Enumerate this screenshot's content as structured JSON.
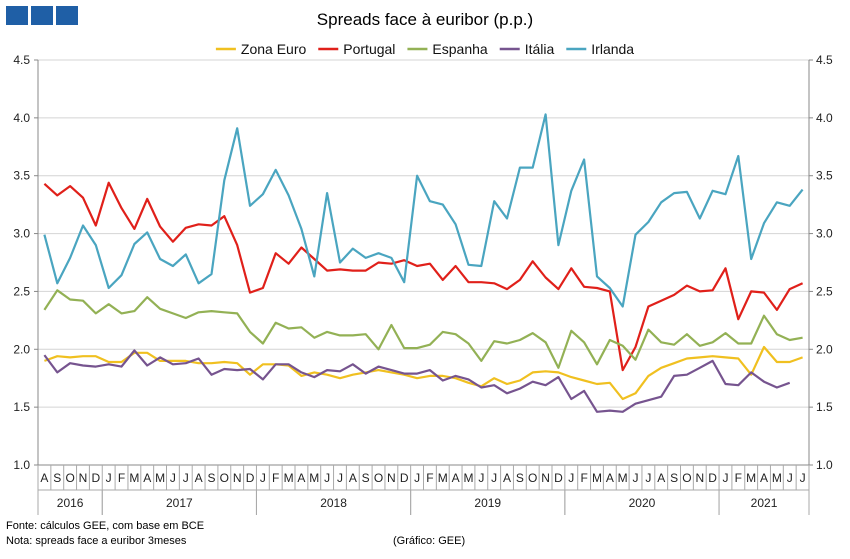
{
  "header": {
    "logo_color": "#1f5fa6",
    "title": "Spreads face à euribor (p.p.)"
  },
  "footer": {
    "source": "Fonte: cálculos GEE, com base em BCE",
    "note": "Nota: spreads face a euribor 3meses",
    "credit": "(Gráfico: GEE)"
  },
  "chart_data": {
    "type": "line",
    "title": "Spreads face à euribor (p.p.)",
    "xlabel": "",
    "ylabel": "",
    "ylim": [
      1.0,
      4.5
    ],
    "yticks": [
      "1.0",
      "1.5",
      "2.0",
      "2.5",
      "3.0",
      "3.5",
      "4.0",
      "4.5"
    ],
    "grid": "horizontal",
    "legend_position": "top",
    "axes": "left and right (mirrored)",
    "x_month_labels": [
      "A",
      "S",
      "O",
      "N",
      "D",
      "J",
      "F",
      "M",
      "A",
      "M",
      "J",
      "J",
      "A",
      "S",
      "O",
      "N",
      "D",
      "J",
      "F",
      "M",
      "A",
      "M",
      "J",
      "J",
      "A",
      "S",
      "O",
      "N",
      "D",
      "J",
      "F",
      "M",
      "A",
      "M",
      "J",
      "J",
      "A",
      "S",
      "O",
      "N",
      "D",
      "J",
      "F",
      "M",
      "A",
      "M",
      "J",
      "J",
      "A",
      "S",
      "O",
      "N",
      "D",
      "J",
      "F",
      "M",
      "A",
      "M",
      "J",
      "J"
    ],
    "x_year_groups": [
      {
        "label": "2016",
        "start": 0,
        "end": 4
      },
      {
        "label": "2017",
        "start": 5,
        "end": 16
      },
      {
        "label": "2018",
        "start": 17,
        "end": 28
      },
      {
        "label": "2019",
        "start": 29,
        "end": 40
      },
      {
        "label": "2020",
        "start": 41,
        "end": 52
      },
      {
        "label": "2021",
        "start": 53,
        "end": 59
      }
    ],
    "series": [
      {
        "name": "Zona Euro",
        "color": "#f0c020",
        "values": [
          1.9,
          1.94,
          1.93,
          1.94,
          1.94,
          1.89,
          1.89,
          1.97,
          1.97,
          1.9,
          1.9,
          1.9,
          1.88,
          1.88,
          1.89,
          1.88,
          1.78,
          1.87,
          1.87,
          1.86,
          1.77,
          1.8,
          1.78,
          1.75,
          1.78,
          1.8,
          1.82,
          1.8,
          1.78,
          1.75,
          1.77,
          1.77,
          1.75,
          1.71,
          1.68,
          1.75,
          1.7,
          1.73,
          1.8,
          1.81,
          1.8,
          1.76,
          1.73,
          1.7,
          1.71,
          1.57,
          1.62,
          1.77,
          1.84,
          1.88,
          1.92,
          1.93,
          1.94,
          1.93,
          1.92,
          1.78,
          2.02,
          1.89,
          1.89,
          1.93
        ]
      },
      {
        "name": "Portugal",
        "color": "#e0201a",
        "values": [
          3.43,
          3.33,
          3.41,
          3.31,
          3.07,
          3.44,
          3.22,
          3.04,
          3.3,
          3.06,
          2.93,
          3.05,
          3.08,
          3.07,
          3.15,
          2.9,
          2.49,
          2.53,
          2.83,
          2.74,
          2.88,
          2.78,
          2.68,
          2.69,
          2.68,
          2.68,
          2.75,
          2.74,
          2.77,
          2.72,
          2.74,
          2.6,
          2.72,
          2.58,
          2.58,
          2.57,
          2.52,
          2.6,
          2.76,
          2.62,
          2.52,
          2.7,
          2.54,
          2.53,
          2.5,
          1.82,
          2.02,
          2.37,
          2.42,
          2.47,
          2.55,
          2.5,
          2.51,
          2.7,
          2.26,
          2.5,
          2.49,
          2.34,
          2.52,
          2.57
        ]
      },
      {
        "name": "Espanha",
        "color": "#93b155",
        "values": [
          2.34,
          2.51,
          2.43,
          2.42,
          2.31,
          2.39,
          2.31,
          2.33,
          2.45,
          2.35,
          2.31,
          2.27,
          2.32,
          2.33,
          2.32,
          2.31,
          2.15,
          2.05,
          2.23,
          2.18,
          2.19,
          2.1,
          2.15,
          2.12,
          2.12,
          2.13,
          2.0,
          2.21,
          2.01,
          2.01,
          2.04,
          2.15,
          2.13,
          2.05,
          1.9,
          2.07,
          2.05,
          2.08,
          2.14,
          2.06,
          1.84,
          2.16,
          2.06,
          1.87,
          2.08,
          2.03,
          1.91,
          2.17,
          2.06,
          2.04,
          2.13,
          2.03,
          2.06,
          2.14,
          2.05,
          2.05,
          2.29,
          2.13,
          2.08,
          2.1
        ]
      },
      {
        "name": "Itália",
        "color": "#76548f",
        "values": [
          1.95,
          1.8,
          1.88,
          1.86,
          1.85,
          1.87,
          1.85,
          1.99,
          1.86,
          1.93,
          1.87,
          1.88,
          1.92,
          1.78,
          1.83,
          1.82,
          1.83,
          1.74,
          1.87,
          1.87,
          1.8,
          1.76,
          1.82,
          1.81,
          1.87,
          1.79,
          1.85,
          1.82,
          1.79,
          1.79,
          1.82,
          1.73,
          1.77,
          1.74,
          1.67,
          1.69,
          1.62,
          1.66,
          1.72,
          1.69,
          1.76,
          1.57,
          1.64,
          1.46,
          1.47,
          1.46,
          1.53,
          1.56,
          1.59,
          1.77,
          1.78,
          1.84,
          1.9,
          1.7,
          1.69,
          1.8,
          1.72,
          1.67,
          1.71,
          null
        ]
      },
      {
        "name": "Irlanda",
        "color": "#4aa5c0",
        "values": [
          2.99,
          2.57,
          2.79,
          3.07,
          2.9,
          2.53,
          2.64,
          2.91,
          3.01,
          2.78,
          2.72,
          2.82,
          2.57,
          2.65,
          3.46,
          3.91,
          3.24,
          3.34,
          3.55,
          3.33,
          3.04,
          2.63,
          3.35,
          2.75,
          2.87,
          2.79,
          2.83,
          2.79,
          2.58,
          3.5,
          3.28,
          3.25,
          3.08,
          2.73,
          2.72,
          3.28,
          3.13,
          3.57,
          3.57,
          4.03,
          2.9,
          3.37,
          3.64,
          2.63,
          2.53,
          2.37,
          2.99,
          3.1,
          3.27,
          3.35,
          3.36,
          3.13,
          3.37,
          3.34,
          3.67,
          2.78,
          3.09,
          3.27,
          3.24,
          3.38
        ]
      }
    ]
  }
}
